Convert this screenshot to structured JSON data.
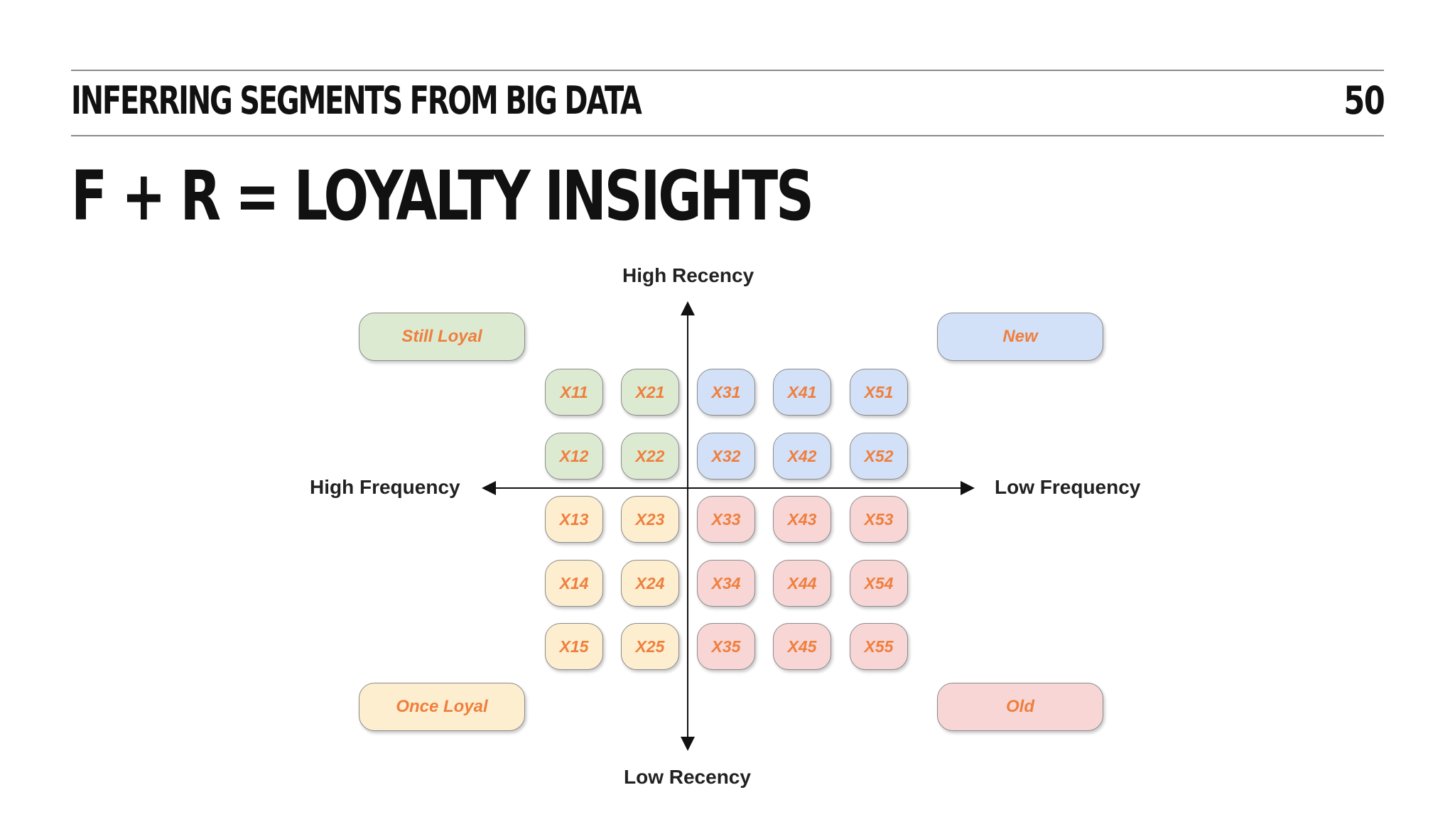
{
  "header": {
    "section_title": "INFERRING SEGMENTS FROM BIG DATA",
    "page_number": "50"
  },
  "slide_title": "F + R = LOYALTY INSIGHTS",
  "axes": {
    "top": "High Recency",
    "bottom": "Low Recency",
    "left": "High Frequency",
    "right": "Low Frequency"
  },
  "quadrants": {
    "top_left": "Still Loyal",
    "top_right": "New",
    "bottom_left": "Once Loyal",
    "bottom_right": "Old"
  },
  "grid": {
    "rows": [
      [
        "X11",
        "X21",
        "X31",
        "X41",
        "X51"
      ],
      [
        "X12",
        "X22",
        "X32",
        "X42",
        "X52"
      ],
      [
        "X13",
        "X23",
        "X33",
        "X43",
        "X53"
      ],
      [
        "X14",
        "X24",
        "X34",
        "X44",
        "X54"
      ],
      [
        "X15",
        "X25",
        "X35",
        "X45",
        "X55"
      ]
    ]
  },
  "colors": {
    "still_loyal": "#dcead2",
    "new": "#d2e0f8",
    "once_loyal": "#fdeecf",
    "old": "#f8d6d6",
    "label_text": "#ef7f3d"
  }
}
